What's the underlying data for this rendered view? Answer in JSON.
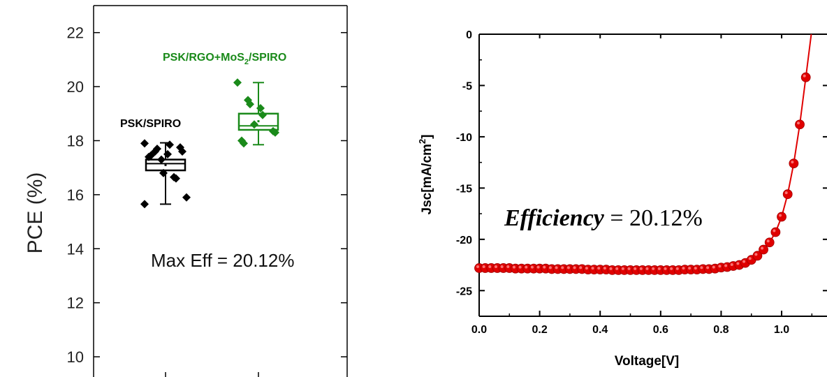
{
  "colors": {
    "series1": "#000000",
    "series2": "#1a8a1a",
    "jv_curve": "#e00000",
    "axis": "#000000"
  },
  "chart_data": [
    {
      "type": "box",
      "ylabel": "PCE (%)",
      "ylim": [
        9.2,
        23.0
      ],
      "yticks": [
        10,
        12,
        14,
        16,
        18,
        20,
        22
      ],
      "annotation": "Max Eff = 20.12%",
      "grid": false,
      "groups": [
        {
          "name": "PSK/SPIRO",
          "color": "#000000",
          "min": 15.65,
          "q1": 16.9,
          "median": 17.15,
          "mean": 17.1,
          "q3": 17.3,
          "max": 17.92,
          "points": [
            17.9,
            17.6,
            17.7,
            17.5,
            17.85,
            17.75,
            17.6,
            17.4,
            17.45,
            17.3,
            16.8,
            16.65,
            16.6,
            15.9,
            15.65
          ]
        },
        {
          "name": "PSK/RGO+MoS",
          "name_sub": "2",
          "name_suffix": "/SPIRO",
          "color": "#1a8a1a",
          "min": 17.85,
          "q1": 18.4,
          "median": 18.55,
          "mean": 18.72,
          "q3": 19.0,
          "max": 20.15,
          "points": [
            20.15,
            19.5,
            19.35,
            19.2,
            18.95,
            18.35,
            18.3,
            18.0,
            17.9,
            18.6
          ]
        }
      ]
    },
    {
      "type": "line",
      "xlabel": "Voltage[V]",
      "ylabel_main": "Jsc[mA/cm",
      "ylabel_sup": "2",
      "ylabel_end": "]",
      "xlim": [
        0.0,
        1.15
      ],
      "ylim": [
        -27.5,
        0
      ],
      "xticks": [
        "0.0",
        "0.2",
        "0.4",
        "0.6",
        "0.8",
        "1.0"
      ],
      "yticks": [
        "0",
        "-5",
        "-10",
        "-15",
        "-20",
        "-25"
      ],
      "annotation_main": "Efficiency",
      "annotation_value": " = 20.12%",
      "grid": false,
      "x": [
        0.0,
        0.02,
        0.04,
        0.06,
        0.08,
        0.1,
        0.12,
        0.14,
        0.16,
        0.18,
        0.2,
        0.22,
        0.24,
        0.26,
        0.28,
        0.3,
        0.32,
        0.34,
        0.36,
        0.38,
        0.4,
        0.42,
        0.44,
        0.46,
        0.48,
        0.5,
        0.52,
        0.54,
        0.56,
        0.58,
        0.6,
        0.62,
        0.64,
        0.66,
        0.68,
        0.7,
        0.72,
        0.74,
        0.76,
        0.78,
        0.8,
        0.82,
        0.84,
        0.86,
        0.88,
        0.9,
        0.92,
        0.94,
        0.96,
        0.98,
        1.0,
        1.02,
        1.04,
        1.06,
        1.08
      ],
      "y": [
        -22.8,
        -22.8,
        -22.8,
        -22.8,
        -22.8,
        -22.8,
        -22.85,
        -22.85,
        -22.85,
        -22.85,
        -22.85,
        -22.85,
        -22.9,
        -22.9,
        -22.9,
        -22.9,
        -22.9,
        -22.9,
        -22.95,
        -22.95,
        -22.95,
        -22.95,
        -23.0,
        -23.0,
        -23.0,
        -23.0,
        -23.0,
        -23.0,
        -23.0,
        -23.0,
        -23.0,
        -23.0,
        -23.0,
        -23.0,
        -22.95,
        -22.95,
        -22.95,
        -22.9,
        -22.9,
        -22.85,
        -22.75,
        -22.7,
        -22.6,
        -22.5,
        -22.3,
        -22.0,
        -21.6,
        -21.0,
        -20.3,
        -19.3,
        -17.8,
        -15.6,
        -12.6,
        -8.8,
        -4.2
      ]
    }
  ]
}
